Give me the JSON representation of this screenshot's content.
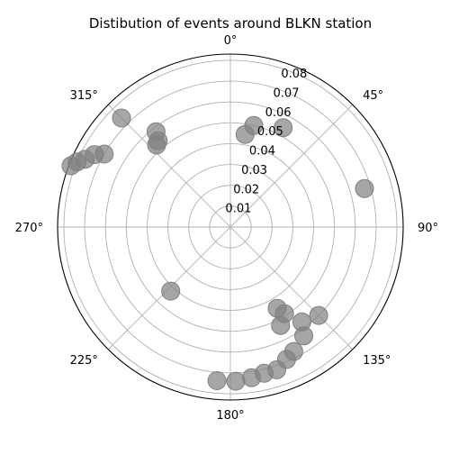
{
  "chart_data": {
    "type": "scatter",
    "projection": "polar",
    "title": "Distibution of events around BLKN station",
    "theta_direction": "clockwise",
    "theta_zero": "north",
    "theta_ticks": [
      0,
      45,
      90,
      135,
      180,
      225,
      270,
      315
    ],
    "theta_tick_labels": [
      "0°",
      "45°",
      "90°",
      "135°",
      "180°",
      "225°",
      "270°",
      "315°"
    ],
    "r_ticks": [
      0.01,
      0.02,
      0.03,
      0.04,
      0.05,
      0.06,
      0.07,
      0.08
    ],
    "r_tick_labels": [
      "0.01",
      "0.02",
      "0.03",
      "0.04",
      "0.05",
      "0.06",
      "0.07",
      "0.08"
    ],
    "r_tick_angle_deg": 22.5,
    "rlim": [
      0,
      0.083
    ],
    "grid": true,
    "marker_color": "#808080",
    "marker_alpha": 0.7,
    "points": [
      {
        "theta": 13,
        "r": 0.05
      },
      {
        "theta": 9,
        "r": 0.045
      },
      {
        "theta": 28,
        "r": 0.054
      },
      {
        "theta": 74,
        "r": 0.067
      },
      {
        "theta": 322,
        "r": 0.058
      },
      {
        "theta": 320,
        "r": 0.054
      },
      {
        "theta": 318,
        "r": 0.053
      },
      {
        "theta": 315,
        "r": 0.074
      },
      {
        "theta": 300,
        "r": 0.07
      },
      {
        "theta": 298,
        "r": 0.074
      },
      {
        "theta": 295,
        "r": 0.077
      },
      {
        "theta": 293,
        "r": 0.08
      },
      {
        "theta": 291,
        "r": 0.082
      },
      {
        "theta": 223,
        "r": 0.042
      },
      {
        "theta": 150,
        "r": 0.045
      },
      {
        "theta": 148,
        "r": 0.049
      },
      {
        "theta": 153,
        "r": 0.053
      },
      {
        "theta": 143,
        "r": 0.057
      },
      {
        "theta": 135,
        "r": 0.06
      },
      {
        "theta": 146,
        "r": 0.063
      },
      {
        "theta": 153,
        "r": 0.067
      },
      {
        "theta": 157,
        "r": 0.069
      },
      {
        "theta": 162,
        "r": 0.072
      },
      {
        "theta": 167,
        "r": 0.072
      },
      {
        "theta": 172,
        "r": 0.073
      },
      {
        "theta": 178,
        "r": 0.074
      },
      {
        "theta": 185,
        "r": 0.074
      }
    ]
  }
}
